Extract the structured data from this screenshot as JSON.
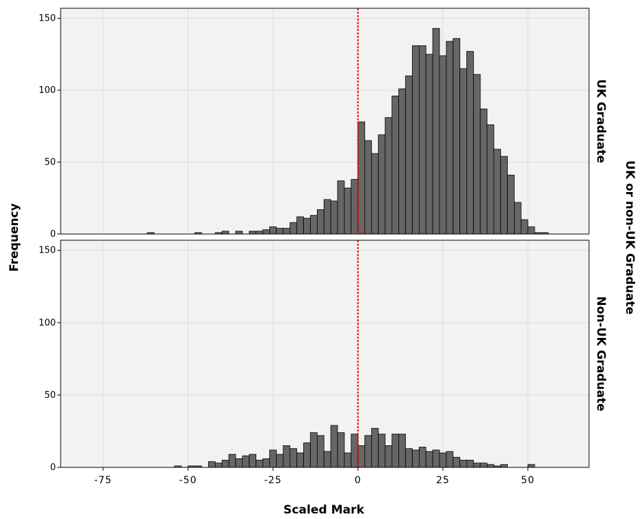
{
  "chart_data": {
    "type": "histogram",
    "x_label": "Scaled Mark",
    "y_label": "Frequency",
    "facet_label": "UK or non-UK Graduate",
    "xlim": [
      -87.5,
      68
    ],
    "xticks": [
      -75,
      -50,
      -25,
      0,
      25,
      50
    ],
    "grid": true,
    "color": "#666666",
    "reference_line": 0,
    "reference_color": "#ff0000",
    "bins": [
      -64,
      -62,
      -60,
      -58,
      -56,
      -54,
      -52,
      -50,
      -48,
      -46,
      -44,
      -42,
      -40,
      -38,
      -36,
      -34,
      -32,
      -30,
      -28,
      -26,
      -24,
      -22,
      -20,
      -18,
      -16,
      -14,
      -12,
      -10,
      -8,
      -6,
      -4,
      -2,
      0,
      2,
      4,
      6,
      8,
      10,
      12,
      14,
      16,
      18,
      20,
      22,
      24,
      26,
      28,
      30,
      32,
      34,
      36,
      38,
      40,
      42,
      44,
      46,
      48,
      50,
      52,
      54,
      56,
      58
    ],
    "panels": [
      {
        "label": "UK Graduate",
        "ylim": [
          0,
          157
        ],
        "yticks": [
          0,
          50,
          100,
          150
        ],
        "counts": [
          0,
          1,
          0,
          0,
          0,
          0,
          0,
          0,
          1,
          0,
          0,
          1,
          2,
          0,
          2,
          0,
          2,
          2,
          3,
          5,
          4,
          4,
          8,
          12,
          11,
          13,
          17,
          24,
          23,
          37,
          32,
          38,
          78,
          65,
          56,
          69,
          81,
          96,
          101,
          110,
          131,
          131,
          125,
          143,
          124,
          134,
          136,
          115,
          127,
          111,
          87,
          76,
          59,
          54,
          41,
          22,
          10,
          5,
          1,
          1,
          0
        ]
      },
      {
        "label": "Non-UK Graduate",
        "ylim": [
          0,
          157
        ],
        "yticks": [
          0,
          50,
          100,
          150
        ],
        "counts": [
          0,
          0,
          0,
          0,
          0,
          1,
          0,
          1,
          1,
          0,
          4,
          3,
          5,
          9,
          6,
          8,
          9,
          5,
          6,
          12,
          9,
          15,
          13,
          10,
          17,
          24,
          22,
          11,
          29,
          24,
          10,
          23,
          15,
          22,
          27,
          23,
          15,
          23,
          23,
          13,
          12,
          14,
          11,
          12,
          10,
          11,
          7,
          5,
          5,
          3,
          3,
          2,
          1,
          2,
          0,
          0,
          0,
          2,
          0,
          0,
          0
        ]
      }
    ]
  }
}
